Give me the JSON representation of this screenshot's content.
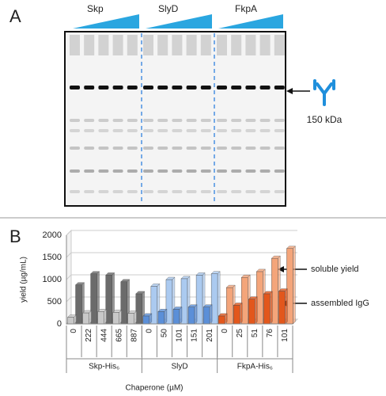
{
  "panel_a": {
    "label": "A",
    "groups": [
      "Skp",
      "SlyD",
      "FkpA"
    ],
    "band_label": "150 kDa"
  },
  "chart_data": {
    "type": "bar3d",
    "panel_label": "B",
    "ylabel": "yield (µg/mL)",
    "xlabel": "Chaperone (µM)",
    "ylim": [
      0,
      2000
    ],
    "yticks": [
      0,
      500,
      1000,
      1500,
      2000
    ],
    "groups": [
      {
        "name": "Skp-His₆",
        "categories": [
          "0",
          "222",
          "444",
          "665",
          "887"
        ],
        "colors": [
          "#6b6b6b",
          "#c8c8c8"
        ]
      },
      {
        "name": "SlyD",
        "categories": [
          "0",
          "50",
          "101",
          "151",
          "201"
        ],
        "colors": [
          "#abcaf0",
          "#5b8fd8"
        ]
      },
      {
        "name": "FkpA-His₆",
        "categories": [
          "0",
          "25",
          "51",
          "76",
          "101"
        ],
        "colors": [
          "#f4a57a",
          "#e2571c"
        ]
      }
    ],
    "series": [
      {
        "name": "soluble yield",
        "values": [
          880,
          1130,
          1100,
          950,
          680,
          850,
          1000,
          1020,
          1100,
          1130,
          820,
          1050,
          1180,
          1480,
          1700
        ]
      },
      {
        "name": "assembled IgG",
        "values": [
          150,
          250,
          280,
          260,
          240,
          180,
          280,
          330,
          380,
          380,
          180,
          420,
          560,
          680,
          740
        ]
      }
    ]
  }
}
